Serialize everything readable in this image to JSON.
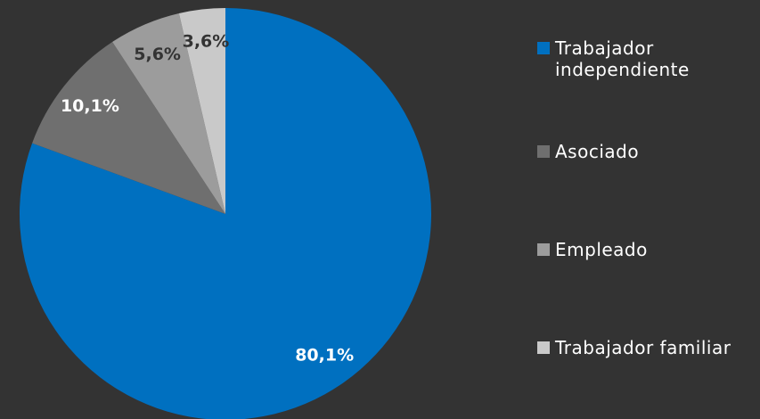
{
  "chart_data": {
    "type": "pie",
    "categories": [
      "Trabajador independiente",
      "Asociado",
      "Empleado",
      "Trabajador familiar"
    ],
    "values": [
      80.1,
      10.1,
      5.6,
      3.6
    ],
    "value_labels": [
      "80,1%",
      "10,1%",
      "5,6%",
      "3,6%"
    ],
    "colors": [
      "#0070c0",
      "#6f6f6f",
      "#9c9c9c",
      "#c9c9c9"
    ],
    "legend": "right"
  }
}
